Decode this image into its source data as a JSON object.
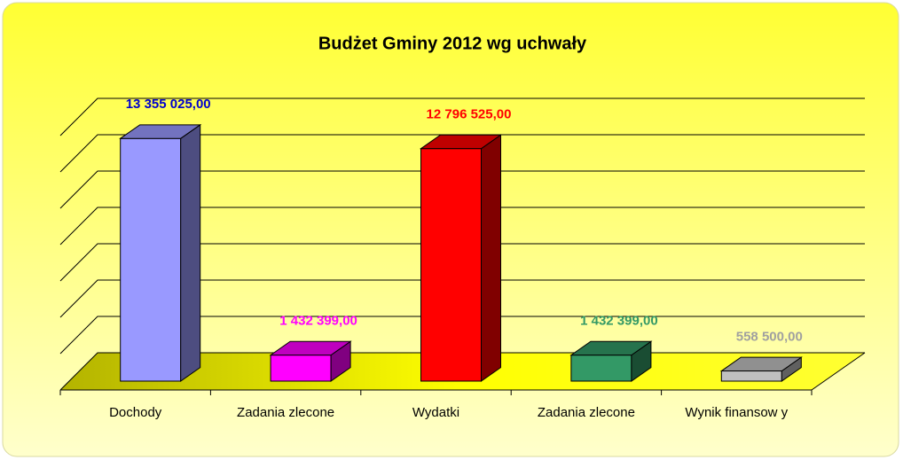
{
  "chart_data": {
    "type": "bar3d",
    "title": "Budżet Gminy 2012 wg uchwały",
    "categories": [
      "Dochody",
      "Zadania zlecone",
      "Wydatki",
      "Zadania zlecone",
      "Wynik finansow y"
    ],
    "values": [
      13355025,
      1432399,
      12796525,
      1432399,
      558500
    ],
    "value_labels": [
      "13 355 025,00",
      "1 432 399,00",
      "12 796 525,00",
      "1 432 399,00",
      "558 500,00"
    ],
    "colors": [
      "#9999ff",
      "#ff00ff",
      "#ff0000",
      "#339966",
      "#c0c0c0"
    ],
    "label_colors": [
      "#0000cc",
      "#ff00ff",
      "#ff0000",
      "#339966",
      "#a0a0a0"
    ],
    "ylim": [
      0,
      14000000
    ],
    "yticks": [
      0,
      2000000,
      4000000,
      6000000,
      8000000,
      10000000,
      12000000,
      14000000
    ],
    "grid": true
  }
}
